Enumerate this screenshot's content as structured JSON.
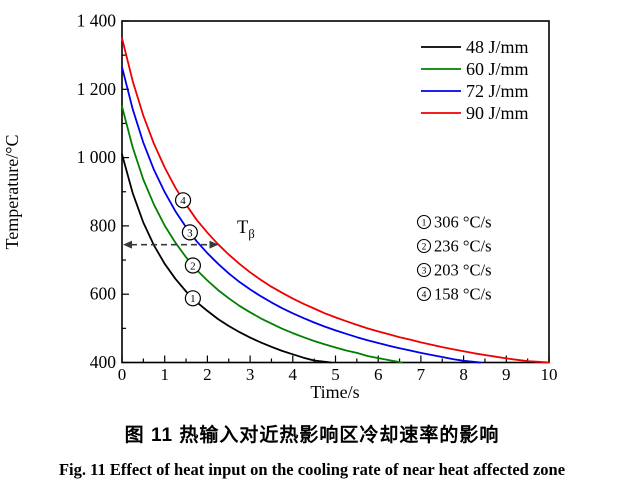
{
  "captions": {
    "chinese": "图 11  热输入对近热影响区冷却速率的影响",
    "english": "Fig. 11  Effect of heat input on the cooling rate of near heat affected zone"
  },
  "chart_data": {
    "type": "line",
    "title": "",
    "xlabel": "Time/s",
    "ylabel": "Temperature/°C",
    "xlim": [
      0,
      10
    ],
    "ylim": [
      400,
      1400
    ],
    "x_major_ticks": [
      0,
      1,
      2,
      3,
      4,
      5,
      6,
      7,
      8,
      9,
      10
    ],
    "x_minor_step": 0.5,
    "y_major_ticks": [
      400,
      600,
      800,
      1000,
      1200,
      1400
    ],
    "y_tick_labels": [
      "400",
      "600",
      "800",
      "1 000",
      "1 200",
      "1 400"
    ],
    "y_minor_step": 100,
    "grid": false,
    "frame": true,
    "legend_position": "inside-top-right",
    "series": [
      {
        "name": "48 J/mm",
        "color": "#000000",
        "points": [
          [
            0,
            1010
          ],
          [
            0.25,
            896
          ],
          [
            0.5,
            810
          ],
          [
            0.75,
            743
          ],
          [
            1,
            689
          ],
          [
            1.25,
            645
          ],
          [
            1.5,
            608
          ],
          [
            1.75,
            577
          ],
          [
            2,
            551
          ],
          [
            2.25,
            527
          ],
          [
            2.5,
            507
          ],
          [
            2.75,
            489
          ],
          [
            3,
            473
          ],
          [
            3.25,
            459
          ],
          [
            3.5,
            446
          ],
          [
            3.75,
            434
          ],
          [
            4,
            424
          ],
          [
            4.25,
            414
          ],
          [
            4.5,
            406
          ],
          [
            4.7,
            403
          ],
          [
            4.9,
            400
          ]
        ]
      },
      {
        "name": "60 J/mm",
        "color": "#008000",
        "points": [
          [
            0,
            1150
          ],
          [
            0.25,
            1030
          ],
          [
            0.5,
            936
          ],
          [
            0.75,
            862
          ],
          [
            1,
            801
          ],
          [
            1.25,
            751
          ],
          [
            1.5,
            708
          ],
          [
            1.75,
            671
          ],
          [
            2,
            640
          ],
          [
            2.25,
            612
          ],
          [
            2.5,
            588
          ],
          [
            2.75,
            566
          ],
          [
            3,
            547
          ],
          [
            3.25,
            529
          ],
          [
            3.5,
            514
          ],
          [
            3.75,
            499
          ],
          [
            4,
            486
          ],
          [
            4.25,
            474
          ],
          [
            4.5,
            463
          ],
          [
            4.75,
            453
          ],
          [
            5,
            444
          ],
          [
            5.25,
            435
          ],
          [
            5.5,
            428
          ],
          [
            5.75,
            419
          ],
          [
            6,
            413
          ],
          [
            6.25,
            407
          ],
          [
            6.55,
            400
          ]
        ]
      },
      {
        "name": "72 J/mm",
        "color": "#0000ee",
        "points": [
          [
            0,
            1265
          ],
          [
            0.25,
            1142
          ],
          [
            0.5,
            1044
          ],
          [
            0.75,
            964
          ],
          [
            1,
            899
          ],
          [
            1.25,
            843
          ],
          [
            1.5,
            796
          ],
          [
            1.75,
            755
          ],
          [
            2,
            720
          ],
          [
            2.25,
            689
          ],
          [
            2.5,
            661
          ],
          [
            2.75,
            636
          ],
          [
            3,
            614
          ],
          [
            3.25,
            594
          ],
          [
            3.5,
            576
          ],
          [
            3.75,
            559
          ],
          [
            4,
            544
          ],
          [
            4.25,
            530
          ],
          [
            4.5,
            517
          ],
          [
            4.75,
            505
          ],
          [
            5,
            494
          ],
          [
            5.25,
            484
          ],
          [
            5.5,
            474
          ],
          [
            5.75,
            465
          ],
          [
            6,
            457
          ],
          [
            6.25,
            449
          ],
          [
            6.5,
            442
          ],
          [
            6.75,
            435
          ],
          [
            7,
            428
          ],
          [
            7.25,
            422
          ],
          [
            7.5,
            416
          ],
          [
            7.75,
            410
          ],
          [
            8,
            405
          ],
          [
            8.4,
            400
          ]
        ]
      },
      {
        "name": "90 J/mm",
        "color": "#ee0000",
        "points": [
          [
            0,
            1350
          ],
          [
            0.25,
            1224
          ],
          [
            0.5,
            1123
          ],
          [
            0.75,
            1040
          ],
          [
            1,
            971
          ],
          [
            1.25,
            912
          ],
          [
            1.5,
            862
          ],
          [
            1.75,
            818
          ],
          [
            2,
            780
          ],
          [
            2.25,
            746
          ],
          [
            2.5,
            716
          ],
          [
            2.75,
            689
          ],
          [
            3,
            664
          ],
          [
            3.25,
            642
          ],
          [
            3.5,
            622
          ],
          [
            3.75,
            604
          ],
          [
            4,
            587
          ],
          [
            4.25,
            572
          ],
          [
            4.5,
            558
          ],
          [
            4.75,
            544
          ],
          [
            5,
            532
          ],
          [
            5.25,
            521
          ],
          [
            5.5,
            510
          ],
          [
            5.75,
            500
          ],
          [
            6,
            491
          ],
          [
            6.25,
            483
          ],
          [
            6.5,
            474
          ],
          [
            6.75,
            467
          ],
          [
            7,
            459
          ],
          [
            7.25,
            452
          ],
          [
            7.5,
            445
          ],
          [
            7.75,
            439
          ],
          [
            8,
            433
          ],
          [
            8.25,
            427
          ],
          [
            8.5,
            422
          ],
          [
            8.75,
            417
          ],
          [
            9,
            412
          ],
          [
            9.25,
            408
          ],
          [
            9.5,
            404
          ],
          [
            9.75,
            402
          ],
          [
            10,
            400
          ]
        ]
      }
    ],
    "curve_markers": [
      {
        "digit": "1",
        "x": 1.66,
        "y": 588,
        "series": "48 J/mm"
      },
      {
        "digit": "2",
        "x": 1.66,
        "y": 684,
        "series": "60 J/mm"
      },
      {
        "digit": "3",
        "x": 1.59,
        "y": 781,
        "series": "72 J/mm"
      },
      {
        "digit": "4",
        "x": 1.43,
        "y": 875,
        "series": "90 J/mm"
      }
    ],
    "cooling_rates": [
      {
        "digit": "1",
        "label": "306 °C/s"
      },
      {
        "digit": "2",
        "label": "236 °C/s"
      },
      {
        "digit": "3",
        "label": "203 °C/s"
      },
      {
        "digit": "4",
        "label": "158 °C/s"
      }
    ],
    "arrow": {
      "y": 745,
      "x1": 0,
      "x2": 2.26,
      "style": "dashed-double-headed",
      "color": "#3a3a3a",
      "label": "T",
      "label_sub": "β"
    }
  }
}
